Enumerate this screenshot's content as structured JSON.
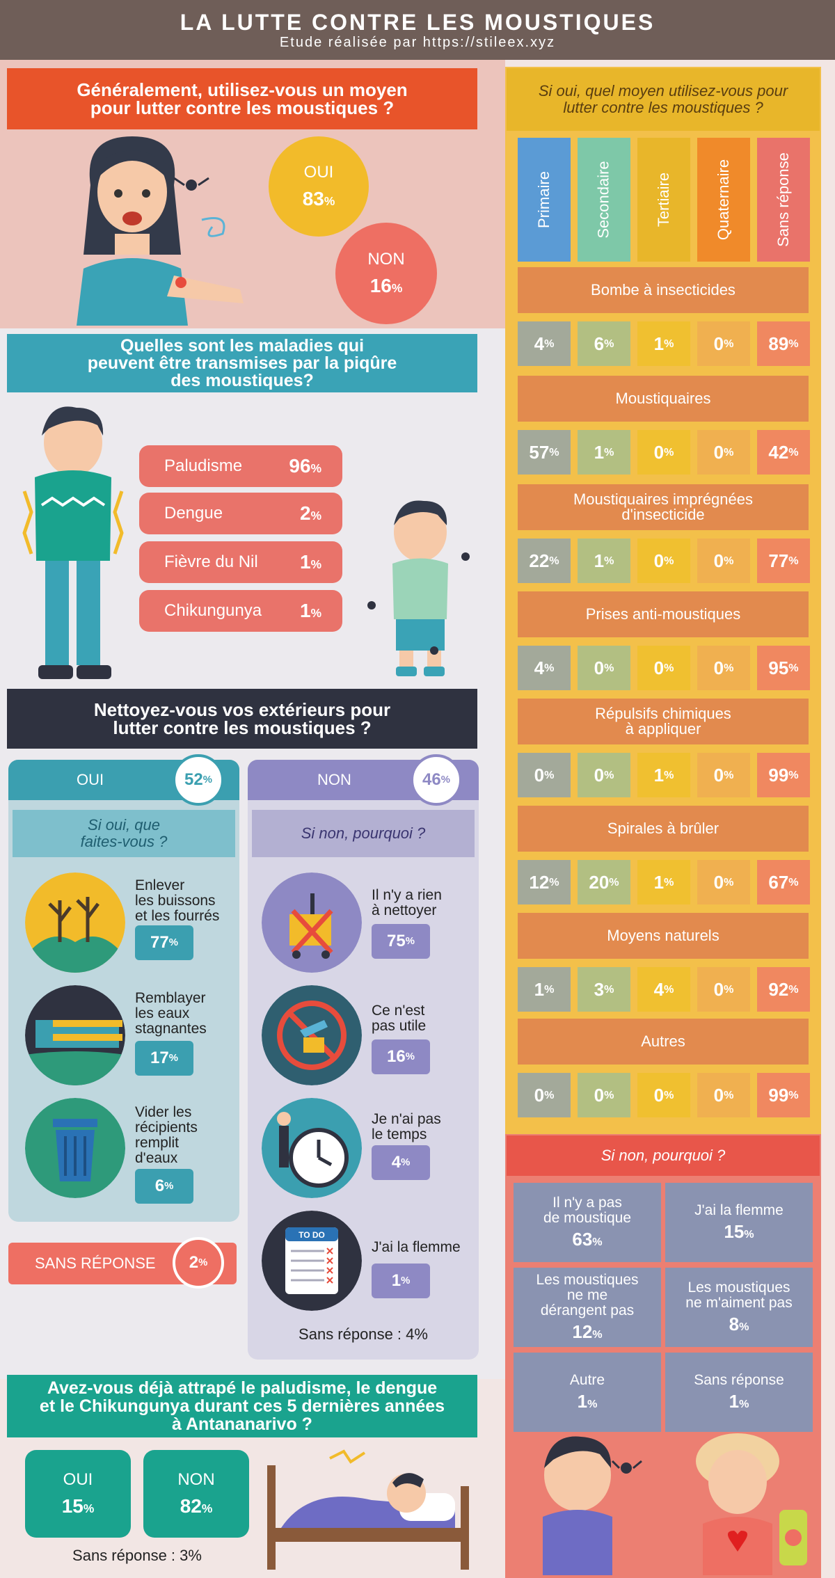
{
  "header": {
    "title": "LA LUTTE CONTRE LES MOUSTIQUES",
    "subtitle": "Etude réalisée par https://stileex.xyz"
  },
  "q1": {
    "question_l1": "Généralement, utilisez-vous un moyen",
    "question_l2": "pour lutter contre les moustiques ?",
    "oui_label": "OUI",
    "oui_value": "83",
    "non_label": "NON",
    "non_value": "16"
  },
  "q2": {
    "question_l1": "Quelles sont les maladies qui",
    "question_l2": "peuvent être transmises par la piqûre",
    "question_l3": "des moustiques?",
    "diseases": [
      {
        "name": "Paludisme",
        "value": "96"
      },
      {
        "name": "Dengue",
        "value": "2"
      },
      {
        "name": "Fièvre du Nil",
        "value": "1"
      },
      {
        "name": "Chikungunya",
        "value": "1"
      }
    ]
  },
  "q3": {
    "question_l1": "Nettoyez-vous vos extérieurs pour",
    "question_l2": "lutter contre les moustiques ?",
    "oui": {
      "label": "OUI",
      "value": "52",
      "sub_l1": "Si oui, que",
      "sub_l2": "faites-vous ?",
      "items": [
        {
          "l1": "Enlever",
          "l2": "les buissons",
          "l3": "et les fourrés",
          "l4": "",
          "value": "77"
        },
        {
          "l1": "Remblayer",
          "l2": "les eaux",
          "l3": "stagnantes",
          "l4": "",
          "value": "17"
        },
        {
          "l1": "Vider les",
          "l2": "récipients",
          "l3": "remplit",
          "l4": "d'eaux",
          "value": "6"
        }
      ]
    },
    "non": {
      "label": "NON",
      "value": "46",
      "sub": "Si non, pourquoi ?",
      "items": [
        {
          "l1": "Il n'y a rien",
          "l2": "à nettoyer",
          "value": "75"
        },
        {
          "l1": "Ce n'est",
          "l2": "pas utile",
          "value": "16"
        },
        {
          "l1": "Je n'ai pas",
          "l2": "le temps",
          "value": "4"
        },
        {
          "l1": "J'ai la flemme",
          "l2": "",
          "value": "1"
        }
      ],
      "todo_label": "TO DO",
      "sans_reponse": "Sans réponse : 4%"
    },
    "sans_reponse_label": "SANS RÉPONSE",
    "sans_reponse_value": "2"
  },
  "q4": {
    "question_l1": "Avez-vous déjà attrapé le paludisme, le dengue",
    "question_l2": "et le Chikungunya durant ces 5 dernières années",
    "question_l3": "à Antananarivo ?",
    "oui_label": "OUI",
    "oui_value": "15",
    "non_label": "NON",
    "non_value": "82",
    "sans_reponse": "Sans réponse : 3%"
  },
  "means": {
    "question_l1": "Si oui, quel moyen utilisez-vous pour",
    "question_l2": "lutter contre les moustiques ?",
    "columns": [
      "Primaire",
      "Secondaire",
      "Tertiaire",
      "Quaternaire",
      "Sans réponse"
    ],
    "column_colors": [
      "#5b9bd5",
      "#7ec8a8",
      "#e8b62a",
      "#f08a2a",
      "#e9736a"
    ],
    "cell_colors": [
      "#a3a99a",
      "#b2bf82",
      "#f0c030",
      "#f0b050",
      "#f08860"
    ],
    "rows": [
      {
        "l1": "Bombe à insecticides",
        "l2": "",
        "values": [
          "4",
          "6",
          "1",
          "0",
          "89"
        ]
      },
      {
        "l1": "Moustiquaires",
        "l2": "",
        "values": [
          "57",
          "1",
          "0",
          "0",
          "42"
        ]
      },
      {
        "l1": "Moustiquaires imprégnées",
        "l2": "d'insecticide",
        "values": [
          "22",
          "1",
          "0",
          "0",
          "77"
        ]
      },
      {
        "l1": "Prises anti-moustiques",
        "l2": "",
        "values": [
          "4",
          "0",
          "0",
          "0",
          "95"
        ]
      },
      {
        "l1": "Répulsifs chimiques",
        "l2": "à appliquer",
        "values": [
          "0",
          "0",
          "1",
          "0",
          "99"
        ]
      },
      {
        "l1": "Spirales à brûler",
        "l2": "",
        "values": [
          "12",
          "20",
          "1",
          "0",
          "67"
        ]
      },
      {
        "l1": "Moyens naturels",
        "l2": "",
        "values": [
          "1",
          "3",
          "4",
          "0",
          "92"
        ]
      },
      {
        "l1": "Autres",
        "l2": "",
        "values": [
          "0",
          "0",
          "0",
          "0",
          "99"
        ]
      }
    ]
  },
  "why_not": {
    "title": "Si non, pourquoi ?",
    "items": [
      {
        "l1": "Il n'y a pas",
        "l2": "de moustique",
        "l3": "",
        "value": "63"
      },
      {
        "l1": "J'ai la flemme",
        "l2": "",
        "l3": "",
        "value": "15"
      },
      {
        "l1": "Les moustiques",
        "l2": "ne me",
        "l3": "dérangent pas",
        "value": "12"
      },
      {
        "l1": "Les moustiques",
        "l2": "ne m'aiment pas",
        "l3": "",
        "value": "8"
      },
      {
        "l1": "Autre",
        "l2": "",
        "l3": "",
        "value": "1"
      },
      {
        "l1": "Sans réponse",
        "l2": "",
        "l3": "",
        "value": "1"
      }
    ]
  },
  "pct_sign": "%"
}
